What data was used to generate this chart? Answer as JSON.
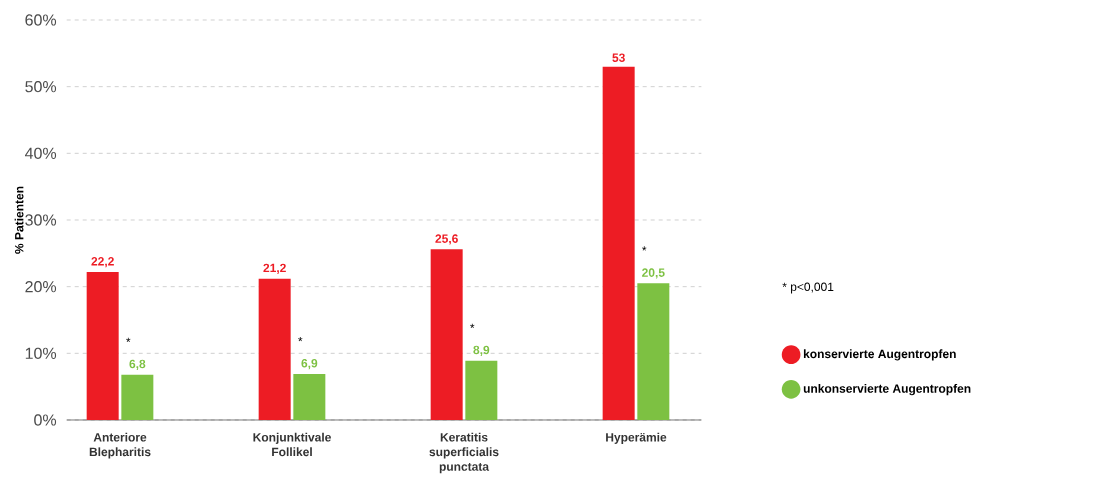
{
  "chart_data": {
    "type": "bar",
    "ylabel": "% Patienten",
    "categories": [
      "Anteriore Blepharitis",
      "Konjunktivale Follikel",
      "Keratitis superficialis punctata",
      "Hyperämie"
    ],
    "series": [
      {
        "name": "konservierte Augentropfen",
        "color": "#ed1c24",
        "values": [
          22.2,
          21.2,
          25.6,
          53
        ],
        "value_labels": [
          "22,2",
          "21,2",
          "25,6",
          "53"
        ]
      },
      {
        "name": "unkonservierte Augentropfen",
        "color": "#7dc142",
        "values": [
          6.8,
          6.9,
          8.9,
          20.5
        ],
        "value_labels": [
          "6,8",
          "6,9",
          "8,9",
          "20,5"
        ]
      }
    ],
    "ylim": [
      0,
      60
    ],
    "yticks": [
      {
        "value": 0,
        "label": "0%"
      },
      {
        "value": 10,
        "label": "10%"
      },
      {
        "value": 20,
        "label": "20%"
      },
      {
        "value": 30,
        "label": "30%"
      },
      {
        "value": 40,
        "label": "40%"
      },
      {
        "value": 50,
        "label": "50%"
      },
      {
        "value": 60,
        "label": "60%"
      }
    ],
    "grid": "y",
    "legend": "right",
    "annotations": [
      {
        "text": "*",
        "x": "Anteriore Blepharitis",
        "y": 6.8
      },
      {
        "text": "*",
        "x": "Konjunktivale Follikel",
        "y": 6.9
      },
      {
        "text": "*",
        "x": "Keratitis superficialis punctata",
        "y": 8.9
      },
      {
        "text": "*",
        "x": "Hyperämie",
        "y": 20.5
      },
      "* p<0,001"
    ]
  }
}
